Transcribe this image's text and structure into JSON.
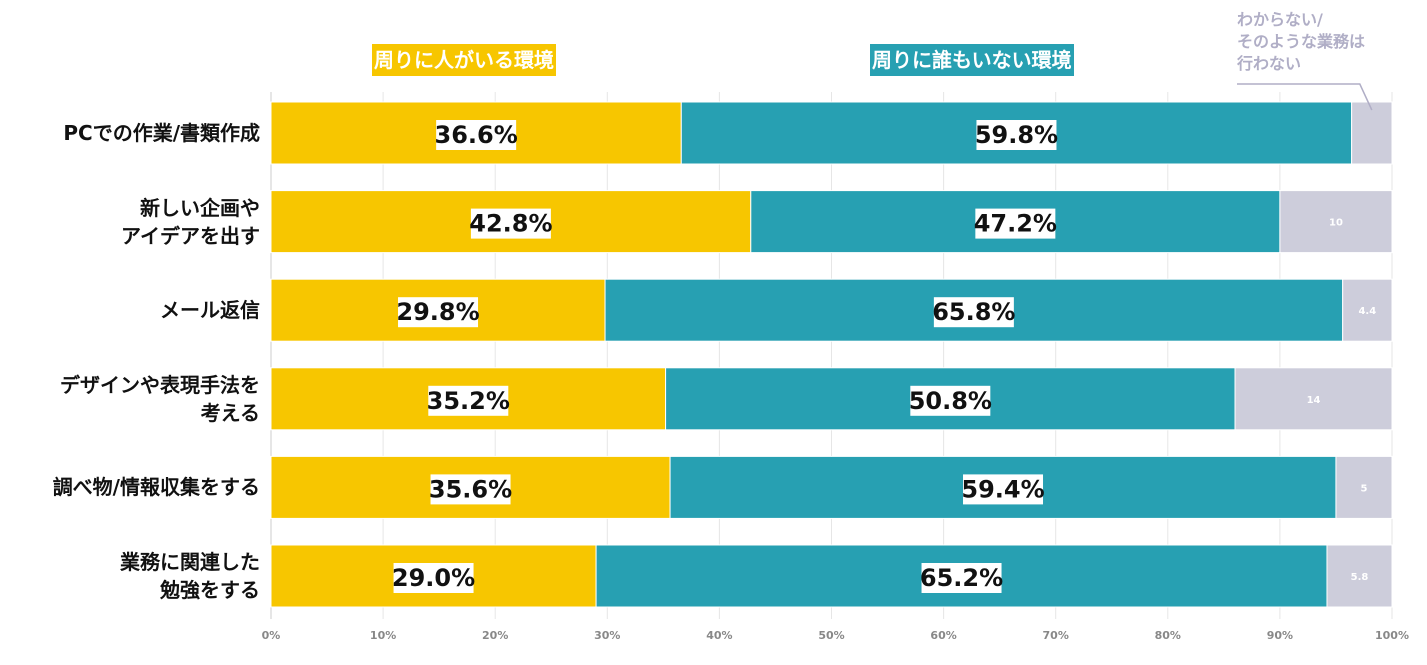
{
  "chart_data": {
    "type": "bar",
    "orientation": "horizontal",
    "stacked": true,
    "xlim": [
      0,
      100
    ],
    "x_ticks": [
      "0%",
      "10%",
      "20%",
      "30%",
      "40%",
      "50%",
      "60%",
      "70%",
      "80%",
      "90%",
      "100%"
    ],
    "grid": true,
    "legend_position": "top",
    "categories": [
      [
        "PCでの作業/書類作成"
      ],
      [
        "新しい企画や",
        "アイデアを出す"
      ],
      [
        "メール返信"
      ],
      [
        "デザインや表現手法を",
        "考える"
      ],
      [
        "調べ物/情報収集をする"
      ],
      [
        "業務に関連した",
        "勉強をする"
      ]
    ],
    "series": [
      {
        "name": "周りに人がいる環境",
        "color": "#f7c600",
        "values": [
          36.6,
          42.8,
          29.8,
          35.2,
          35.6,
          29.0
        ],
        "labels": [
          "36.6%",
          "42.8%",
          "29.8%",
          "35.2%",
          "35.6%",
          "29.0%"
        ]
      },
      {
        "name": "周りに誰もいない環境",
        "color": "#27a0b2",
        "values": [
          59.8,
          47.2,
          65.8,
          50.8,
          59.4,
          65.2
        ],
        "labels": [
          "59.8%",
          "47.2%",
          "65.8%",
          "50.8%",
          "59.4%",
          "65.2%"
        ]
      },
      {
        "name_lines": [
          "わからない/",
          "そのような業務は",
          "行わない"
        ],
        "color": "#cdcddb",
        "values": [
          3.6,
          10,
          4.4,
          14,
          5,
          5.8
        ],
        "labels": [
          "",
          "10",
          "4.4",
          "14",
          "5",
          "5.8"
        ]
      }
    ]
  }
}
